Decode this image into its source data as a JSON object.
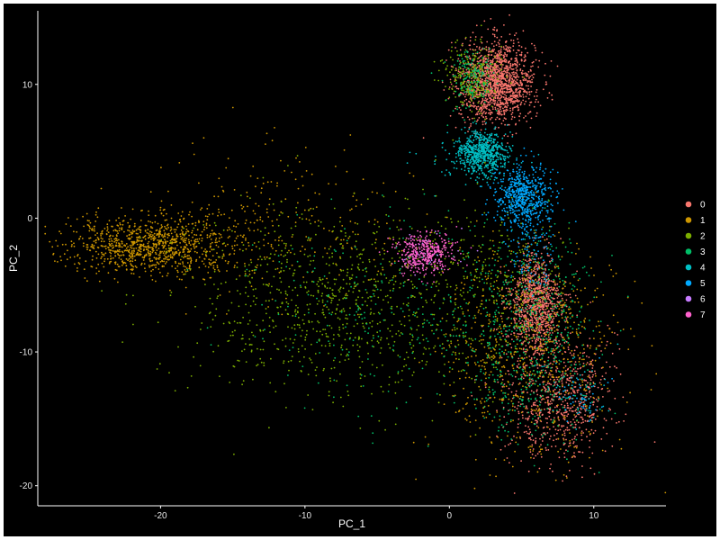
{
  "chart_data": {
    "type": "scatter",
    "title": "",
    "xlabel": "PC_1",
    "ylabel": "PC_2",
    "xlim": [
      -28.5,
      15
    ],
    "ylim": [
      -21.5,
      15.5
    ],
    "x_ticks": [
      -20,
      -10,
      0,
      10
    ],
    "y_ticks": [
      -20,
      -10,
      0,
      10
    ],
    "grid": false,
    "background": "#000000",
    "axis_color": "#ffffff",
    "legend_position": "right",
    "series": [
      {
        "name": "0",
        "color": "#F8766D",
        "clusters": [
          {
            "cx": 3.3,
            "cy": 10.2,
            "sx": 1.3,
            "sy": 1.5,
            "n": 1500
          },
          {
            "cx": 6.0,
            "cy": -6.5,
            "sx": 0.9,
            "sy": 1.8,
            "n": 1000
          },
          {
            "cx": 7.5,
            "cy": -13.5,
            "sx": 1.8,
            "sy": 2.4,
            "n": 700
          }
        ]
      },
      {
        "name": "1",
        "color": "#CD9600",
        "clusters": [
          {
            "cx": -20.5,
            "cy": -2.0,
            "sx": 3.0,
            "sy": 1.0,
            "n": 1000
          },
          {
            "cx": -12.0,
            "cy": -0.5,
            "sx": 4.5,
            "sy": 2.8,
            "n": 280
          },
          {
            "cx": 5.5,
            "cy": -10.0,
            "sx": 3.0,
            "sy": 4.0,
            "n": 750
          }
        ]
      },
      {
        "name": "2",
        "color": "#7CAE00",
        "clusters": [
          {
            "cx": -8.0,
            "cy": -6.5,
            "sx": 5.5,
            "sy": 3.5,
            "n": 900
          },
          {
            "cx": 1.5,
            "cy": 10.5,
            "sx": 1.0,
            "sy": 1.2,
            "n": 250
          },
          {
            "cx": 3.0,
            "cy": -5.0,
            "sx": 2.5,
            "sy": 3.0,
            "n": 250
          }
        ]
      },
      {
        "name": "3",
        "color": "#00BE67",
        "clusters": [
          {
            "cx": 5.5,
            "cy": -8.5,
            "sx": 2.2,
            "sy": 3.8,
            "n": 550
          },
          {
            "cx": -3.0,
            "cy": -7.0,
            "sx": 5.5,
            "sy": 3.5,
            "n": 300
          },
          {
            "cx": 1.5,
            "cy": 10.5,
            "sx": 0.9,
            "sy": 1.1,
            "n": 150
          }
        ]
      },
      {
        "name": "4",
        "color": "#00BFC4",
        "clusters": [
          {
            "cx": 2.2,
            "cy": 4.9,
            "sx": 0.9,
            "sy": 0.8,
            "n": 650
          },
          {
            "cx": 1.5,
            "cy": 4.0,
            "sx": 1.8,
            "sy": 0.8,
            "n": 60
          },
          {
            "cx": 8.5,
            "cy": -13.0,
            "sx": 1.5,
            "sy": 1.2,
            "n": 50
          }
        ]
      },
      {
        "name": "5",
        "color": "#00A9FF",
        "clusters": [
          {
            "cx": 5.0,
            "cy": 1.6,
            "sx": 1.0,
            "sy": 1.2,
            "n": 600
          },
          {
            "cx": 5.8,
            "cy": -2.0,
            "sx": 0.8,
            "sy": 1.8,
            "n": 120
          },
          {
            "cx": 9.0,
            "cy": -13.5,
            "sx": 1.0,
            "sy": 1.0,
            "n": 40
          }
        ]
      },
      {
        "name": "6",
        "color": "#C77CFF",
        "clusters": [
          {
            "cx": -1.8,
            "cy": -2.6,
            "sx": 1.0,
            "sy": 0.8,
            "n": 40
          }
        ]
      },
      {
        "name": "7",
        "color": "#FF61CC",
        "clusters": [
          {
            "cx": -1.8,
            "cy": -2.6,
            "sx": 1.0,
            "sy": 0.8,
            "n": 380
          }
        ]
      }
    ]
  }
}
